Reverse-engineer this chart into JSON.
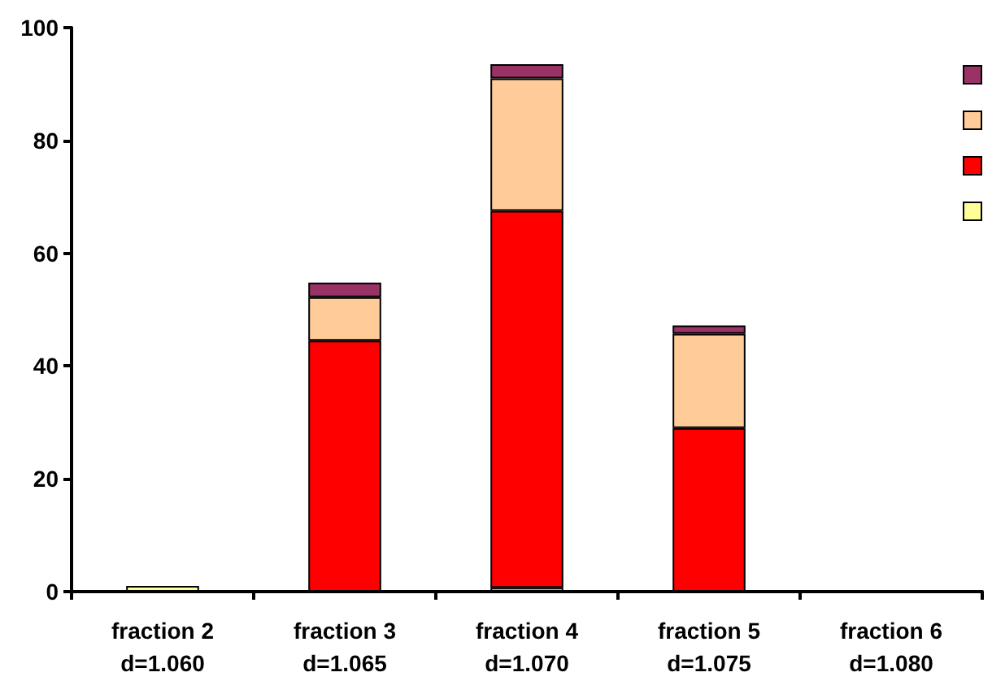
{
  "chart_data": {
    "type": "bar",
    "stacked": true,
    "categories": [
      "fraction 2\nd=1.060",
      "fraction 3\nd=1.065",
      "fraction 4\nd=1.070",
      "fraction 5\nd=1.075",
      "fraction 6\nd=1.080"
    ],
    "series": [
      {
        "color": "#ffff99",
        "values": [
          1,
          0,
          0.7,
          0,
          0
        ]
      },
      {
        "color": "#ff0000",
        "values": [
          0,
          44.5,
          66.8,
          29,
          0
        ]
      },
      {
        "color": "#ffcc99",
        "values": [
          0,
          7.7,
          23.5,
          16.7,
          0
        ]
      },
      {
        "color": "#993366",
        "values": [
          0,
          2.6,
          2.5,
          1.5,
          0
        ]
      }
    ],
    "ylim": [
      0,
      100
    ],
    "yticks": [
      0,
      20,
      40,
      60,
      80,
      100
    ],
    "grid": false
  }
}
